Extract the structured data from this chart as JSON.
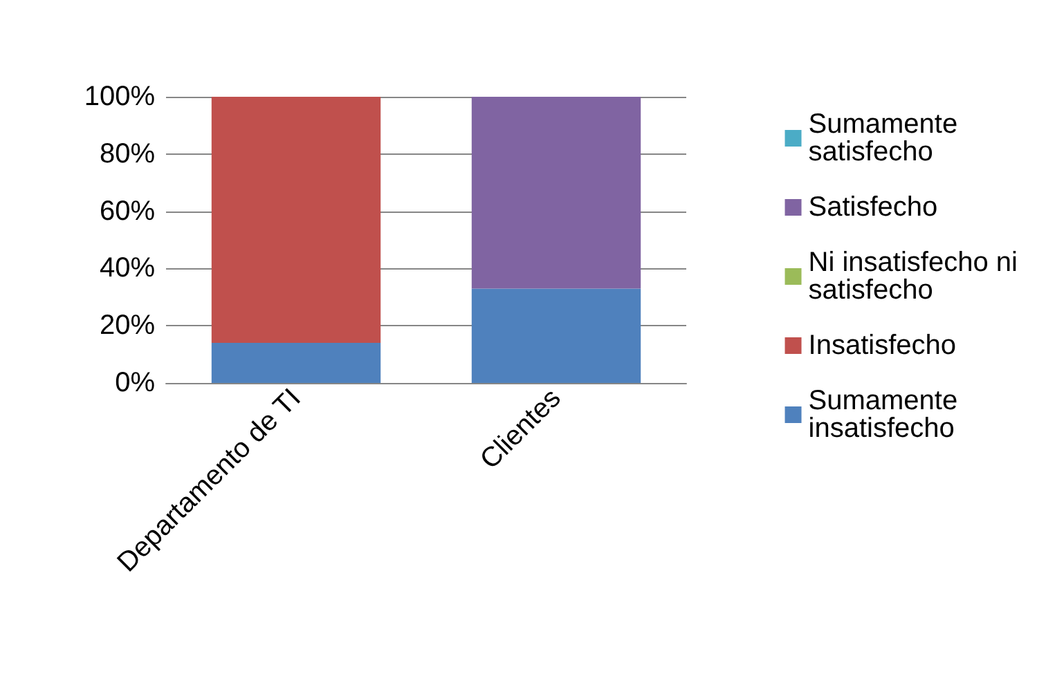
{
  "chart_data": {
    "type": "bar",
    "stacked": true,
    "categories": [
      "Departamento de TI",
      "Clientes"
    ],
    "series": [
      {
        "name": "Sumamente insatisfecho",
        "color": "#4f81bd",
        "values": [
          14,
          33
        ]
      },
      {
        "name": "Insatisfecho",
        "color": "#c0504d",
        "values": [
          86,
          0
        ]
      },
      {
        "name": "Ni insatisfecho ni satisfecho",
        "color": "#9bbb59",
        "values": [
          0,
          0
        ]
      },
      {
        "name": "Satisfecho",
        "color": "#8064a2",
        "values": [
          0,
          67
        ]
      },
      {
        "name": "Sumamente satisfecho",
        "color": "#4bacc6",
        "values": [
          0,
          0
        ]
      }
    ],
    "ylim": [
      0,
      100
    ],
    "yticks": [
      {
        "value": 0,
        "label": "0%"
      },
      {
        "value": 20,
        "label": "20%"
      },
      {
        "value": 40,
        "label": "40%"
      },
      {
        "value": 60,
        "label": "60%"
      },
      {
        "value": 80,
        "label": "80%"
      },
      {
        "value": 100,
        "label": "100%"
      }
    ],
    "grid": true,
    "legend": "right"
  }
}
